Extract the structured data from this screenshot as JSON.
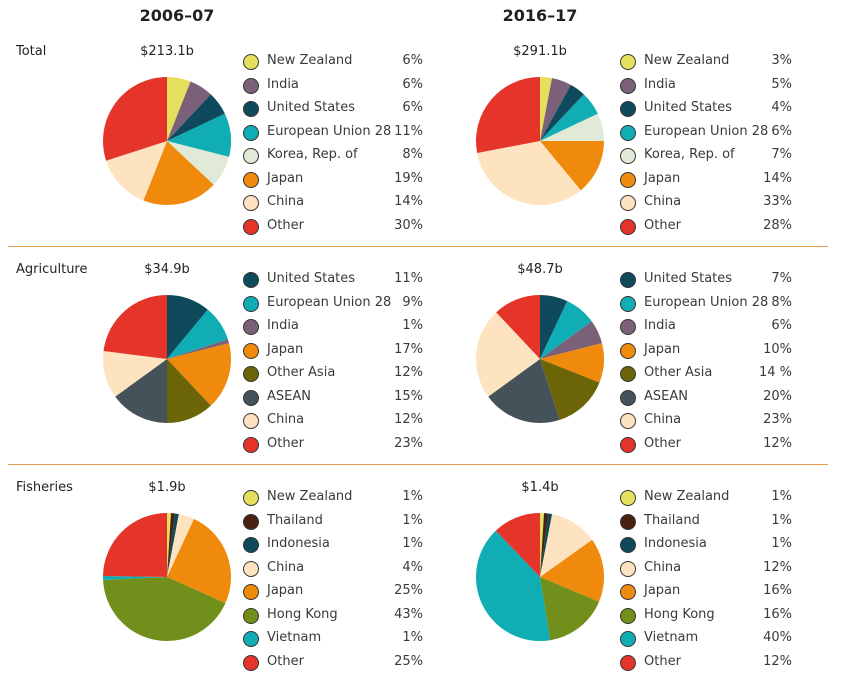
{
  "colors": {
    "New Zealand": "#e4e05e",
    "India": "#7a6179",
    "United States": "#0e4a5b",
    "European Union 28": "#10adb5",
    "Korea, Rep. of": "#e0ead6",
    "Japan": "#ef8a0c",
    "China": "#fde3bf",
    "Other": "#e5352b",
    "Other Asia": "#6b6508",
    "ASEAN": "#46525a",
    "Thailand": "#4a200e",
    "Indonesia": "#0e4a5b",
    "Hong Kong": "#718f1a",
    "Vietnam": "#10adb5"
  },
  "chart_data": {
    "type": "pie",
    "columns": [
      "2006–07",
      "2016–17"
    ],
    "rows": [
      {
        "name": "Total",
        "charts": [
          {
            "total": "$213.1b",
            "slices": [
              [
                "New Zealand",
                6,
                "6%"
              ],
              [
                "India",
                6,
                "6%"
              ],
              [
                "United States",
                6,
                "6%"
              ],
              [
                "European Union 28",
                11,
                "11%"
              ],
              [
                "Korea, Rep. of",
                8,
                "8%"
              ],
              [
                "Japan",
                19,
                "19%"
              ],
              [
                "China",
                14,
                "14%"
              ],
              [
                "Other",
                30,
                "30%"
              ]
            ]
          },
          {
            "total": "$291.1b",
            "slices": [
              [
                "New Zealand",
                3,
                "3%"
              ],
              [
                "India",
                5,
                "5%"
              ],
              [
                "United States",
                4,
                "4%"
              ],
              [
                "European Union 28",
                6,
                "6%"
              ],
              [
                "Korea, Rep. of",
                7,
                "7%"
              ],
              [
                "Japan",
                14,
                "14%"
              ],
              [
                "China",
                33,
                "33%"
              ],
              [
                "Other",
                28,
                "28%"
              ]
            ]
          }
        ]
      },
      {
        "name": "Agriculture",
        "charts": [
          {
            "total": "$34.9b",
            "slices": [
              [
                "United States",
                11,
                "11%"
              ],
              [
                "European Union 28",
                9,
                "9%"
              ],
              [
                "India",
                1,
                "1%"
              ],
              [
                "Japan",
                17,
                "17%"
              ],
              [
                "Other Asia",
                12,
                "12%"
              ],
              [
                "ASEAN",
                15,
                "15%"
              ],
              [
                "China",
                12,
                "12%"
              ],
              [
                "Other",
                23,
                "23%"
              ]
            ]
          },
          {
            "total": "$48.7b",
            "slices": [
              [
                "United States",
                7,
                "7%"
              ],
              [
                "European Union 28",
                8,
                "8%"
              ],
              [
                "India",
                6,
                "6%"
              ],
              [
                "Japan",
                10,
                "10%"
              ],
              [
                "Other Asia",
                14,
                "14 %"
              ],
              [
                "ASEAN",
                20,
                "20%"
              ],
              [
                "China",
                23,
                "23%"
              ],
              [
                "Other",
                12,
                "12%"
              ]
            ]
          }
        ]
      },
      {
        "name": "Fisheries",
        "charts": [
          {
            "total": "$1.9b",
            "slices": [
              [
                "New Zealand",
                1,
                "1%"
              ],
              [
                "Thailand",
                1,
                "1%"
              ],
              [
                "Indonesia",
                1,
                "1%"
              ],
              [
                "China",
                4,
                "4%"
              ],
              [
                "Japan",
                25,
                "25%"
              ],
              [
                "Hong Kong",
                43,
                "43%"
              ],
              [
                "Vietnam",
                1,
                "1%"
              ],
              [
                "Other",
                25,
                "25%"
              ]
            ]
          },
          {
            "total": "$1.4b",
            "slices": [
              [
                "New Zealand",
                1,
                "1%"
              ],
              [
                "Thailand",
                1,
                "1%"
              ],
              [
                "Indonesia",
                1,
                "1%"
              ],
              [
                "China",
                12,
                "12%"
              ],
              [
                "Japan",
                16,
                "16%"
              ],
              [
                "Hong Kong",
                16,
                "16%"
              ],
              [
                "Vietnam",
                40,
                "40%"
              ],
              [
                "Other",
                12,
                "12%"
              ]
            ]
          }
        ]
      }
    ]
  }
}
